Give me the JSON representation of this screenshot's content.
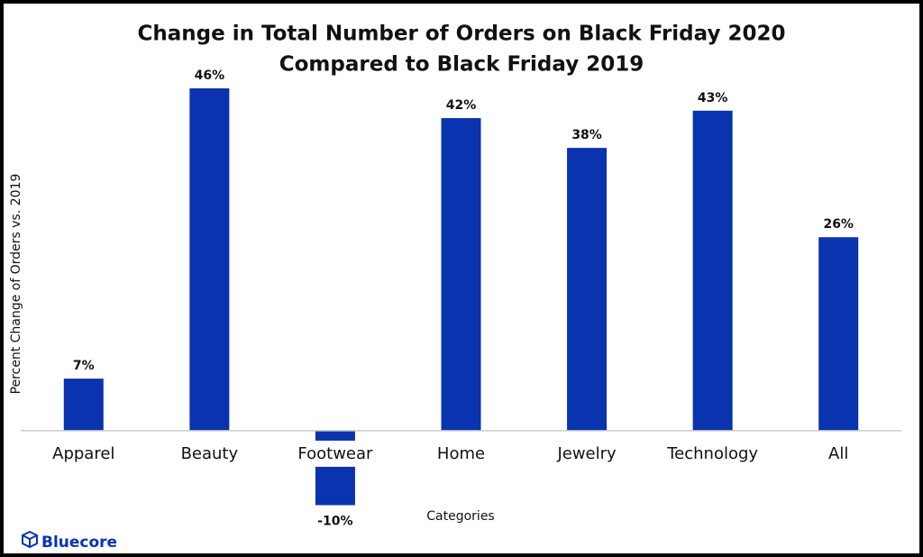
{
  "chart_data": {
    "type": "bar",
    "title": [
      "Change in Total Number of Orders on Black Friday 2020",
      "Compared to Black Friday 2019"
    ],
    "y_label": "Percent Change of Orders vs. 2019",
    "x_label": "Categories",
    "categories": [
      "Apparel",
      "Beauty",
      "Footwear",
      "Home",
      "Jewelry",
      "Technology",
      "All"
    ],
    "values": [
      7,
      46,
      -10,
      42,
      38,
      43,
      26
    ],
    "value_labels": [
      "7%",
      "46%",
      "-10%",
      "42%",
      "38%",
      "43%",
      "26%"
    ],
    "color": "#0a33b0",
    "ylim": [
      -12,
      50
    ],
    "brand": "Bluecore"
  }
}
